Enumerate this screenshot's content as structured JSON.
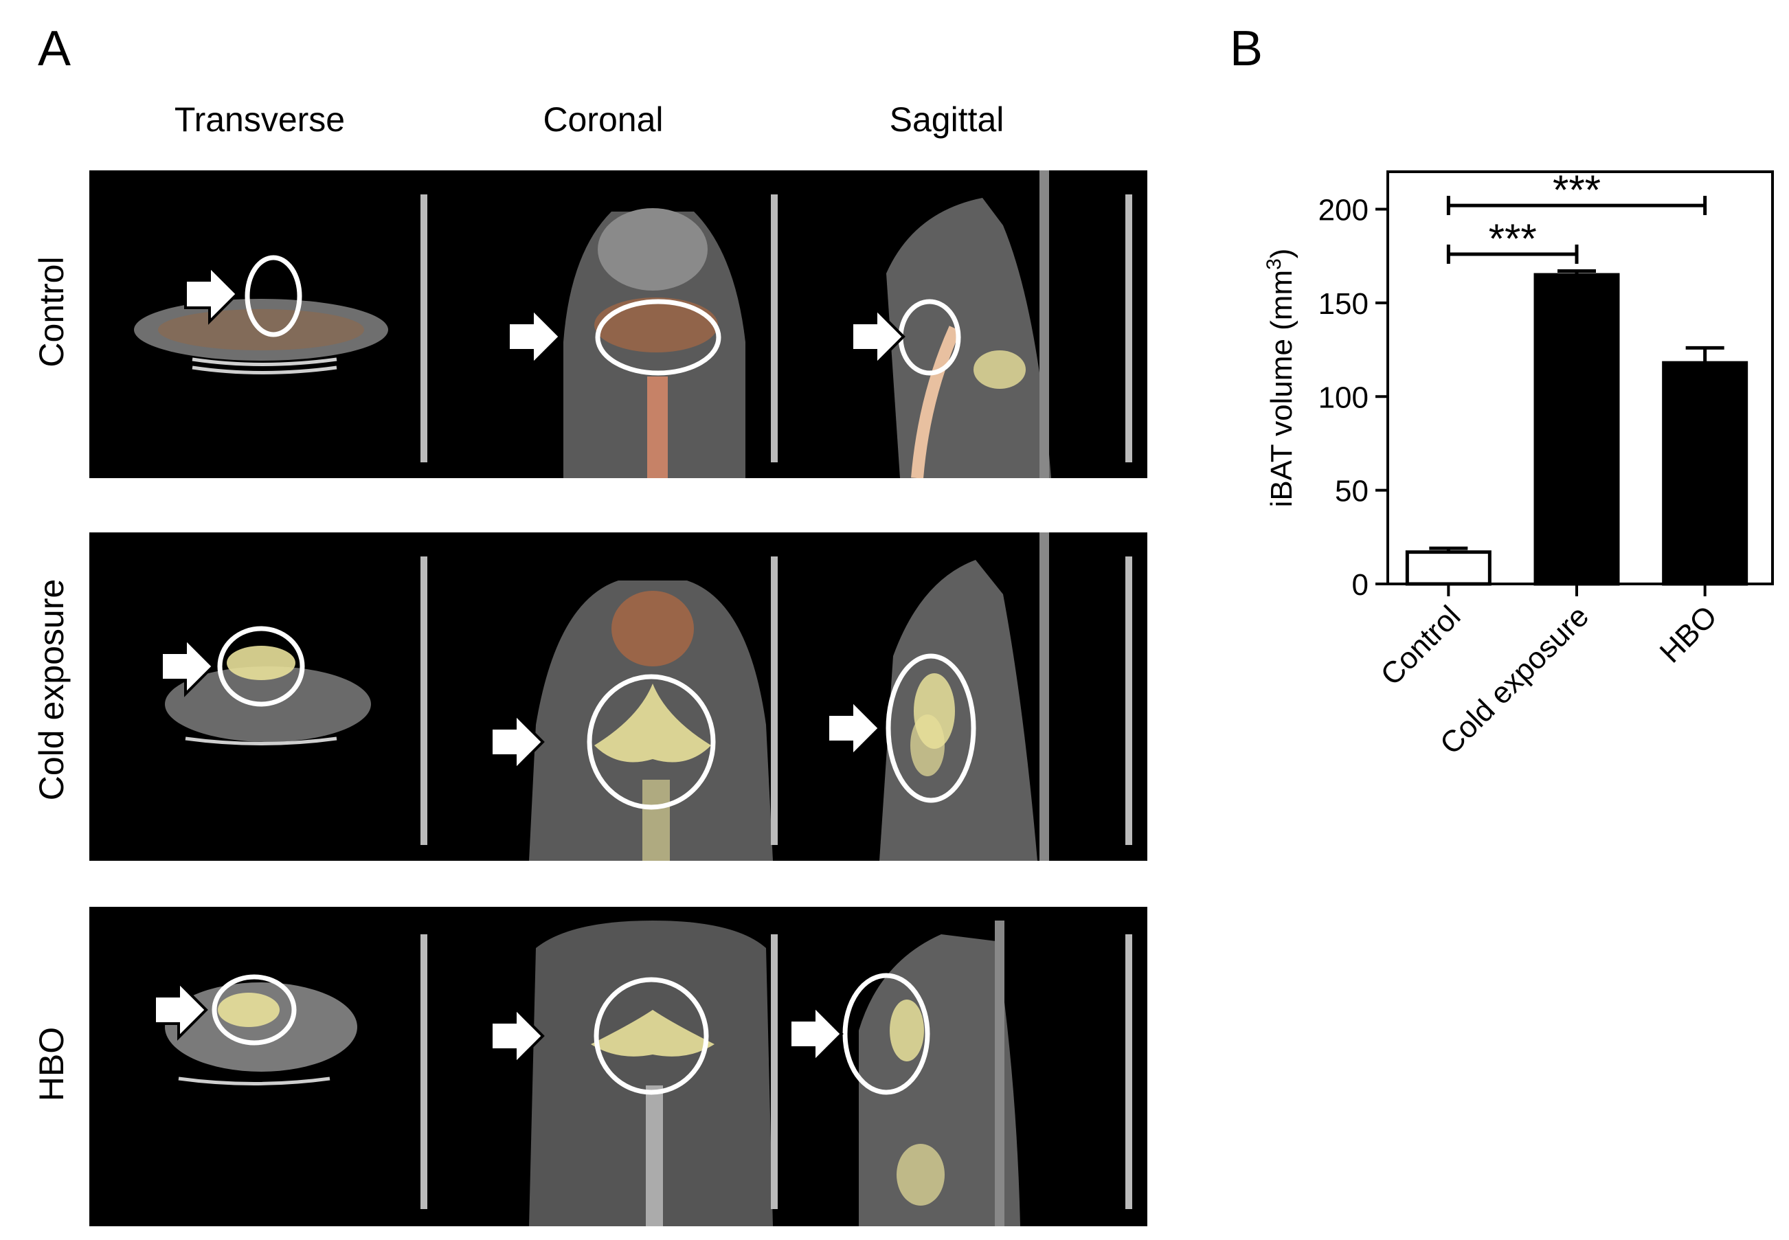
{
  "panels": {
    "a_label": "A",
    "b_label": "B"
  },
  "columns": [
    "Transverse",
    "Coronal",
    "Sagittal"
  ],
  "rows": [
    "Control",
    "Cold exposure",
    "HBO"
  ],
  "colors": {
    "background": "#000000",
    "highlight_circle": "#ffffff",
    "bat_signal": "#e8e09a",
    "pet_overlay": "#d9641e",
    "control_bar_fill": "#ffffff",
    "treated_bar_fill": "#000000"
  },
  "chart_data": {
    "type": "bar",
    "categories": [
      "Control",
      "Cold exposure",
      "HBO"
    ],
    "values": [
      17,
      165,
      118
    ],
    "errors": [
      2,
      2,
      8
    ],
    "bar_fills": [
      "#ffffff",
      "#000000",
      "#000000"
    ],
    "ylabel": "iBAT volume (mm",
    "ylabel_sup": "3",
    "ylabel_close": ")",
    "ylim": [
      0,
      220
    ],
    "yticks": [
      0,
      50,
      100,
      150,
      200
    ],
    "significance": [
      {
        "from": "Control",
        "to": "Cold exposure",
        "label": "***"
      },
      {
        "from": "Control",
        "to": "HBO",
        "label": "***"
      }
    ],
    "grid": false
  }
}
